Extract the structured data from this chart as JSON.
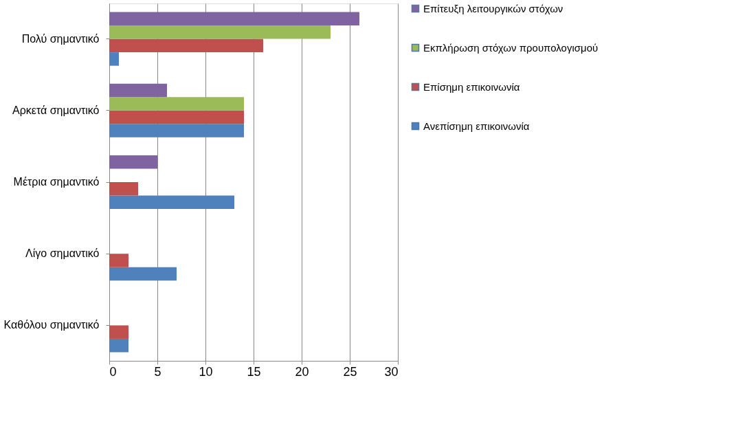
{
  "chart_data": {
    "type": "bar",
    "orientation": "horizontal",
    "categories": [
      "Πολύ σημαντικό",
      "Αρκετά σημαντικό",
      "Μέτρια σημαντικό",
      "Λίγο σημαντικό",
      "Καθόλου σημαντικό"
    ],
    "series": [
      {
        "name": "Ανεπίσημη επικοινωνία",
        "color": "#4f81bd",
        "values": [
          1,
          14,
          13,
          7,
          2
        ]
      },
      {
        "name": "Επίσημη επικοινωνία",
        "color": "#c0504d",
        "values": [
          16,
          14,
          3,
          2,
          2
        ]
      },
      {
        "name": "Εκπλήρωση στόχων προυπολογισμού",
        "color": "#9bbb59",
        "values": [
          23,
          14,
          0,
          0,
          0
        ]
      },
      {
        "name": "Επίτευξη λειτουργικών στόχων",
        "color": "#8064a2",
        "values": [
          26,
          6,
          5,
          0,
          0
        ]
      }
    ],
    "xlim": [
      0,
      30
    ],
    "xticks": [
      0,
      5,
      10,
      15,
      20,
      25,
      30
    ],
    "grid": "x",
    "legend": "right"
  }
}
